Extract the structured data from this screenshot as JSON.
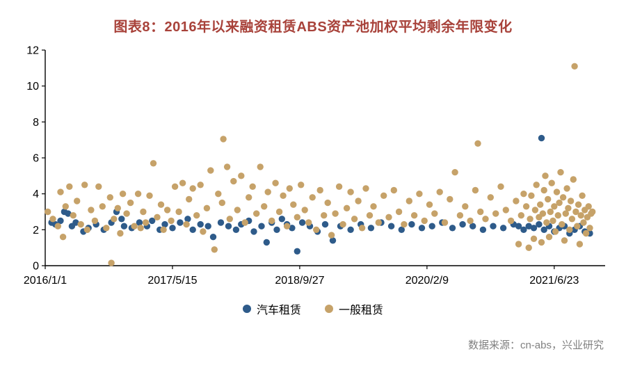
{
  "title": "图表8：2016年以来融资租赁ABS资产池加权平均剩余年限变化",
  "source": "数据来源：cn-abs，兴业研究",
  "colors": {
    "title": "#A8423A",
    "axis": "#000000",
    "tick_label": "#000000",
    "source_text": "#808080",
    "auto_lease": "#2E5B8A",
    "general_lease": "#C6A269"
  },
  "chart_data": {
    "type": "scatter",
    "title": "图表8：2016年以来融资租赁ABS资产池加权平均剩余年限变化",
    "xlabel": "",
    "ylabel": "",
    "grid": false,
    "legend_position": "bottom",
    "ylim": [
      0,
      12
    ],
    "ytick_step": 2,
    "xlim": [
      0,
      2200
    ],
    "x_unit": "days_since_2016-01-01",
    "xticks": [
      {
        "t": 0,
        "label": "2016/1/1"
      },
      {
        "t": 500,
        "label": "2017/5/15"
      },
      {
        "t": 1000,
        "label": "2018/9/27"
      },
      {
        "t": 1500,
        "label": "2020/2/9"
      },
      {
        "t": 2000,
        "label": "2021/6/23"
      }
    ],
    "series": [
      {
        "name": "汽车租赁",
        "color": "#2E5B8A",
        "points": [
          [
            25,
            2.4
          ],
          [
            40,
            2.3
          ],
          [
            60,
            2.5
          ],
          [
            75,
            3.0
          ],
          [
            90,
            2.9
          ],
          [
            105,
            2.2
          ],
          [
            120,
            2.4
          ],
          [
            150,
            1.9
          ],
          [
            170,
            2.1
          ],
          [
            200,
            2.3
          ],
          [
            230,
            2.0
          ],
          [
            260,
            2.4
          ],
          [
            280,
            3.0
          ],
          [
            300,
            2.6
          ],
          [
            310,
            2.2
          ],
          [
            340,
            2.1
          ],
          [
            370,
            2.4
          ],
          [
            400,
            2.2
          ],
          [
            420,
            2.5
          ],
          [
            450,
            2.0
          ],
          [
            470,
            2.3
          ],
          [
            500,
            2.1
          ],
          [
            530,
            2.4
          ],
          [
            560,
            2.6
          ],
          [
            580,
            2.0
          ],
          [
            610,
            2.3
          ],
          [
            640,
            2.2
          ],
          [
            660,
            1.6
          ],
          [
            690,
            2.4
          ],
          [
            720,
            2.2
          ],
          [
            750,
            2.0
          ],
          [
            770,
            2.3
          ],
          [
            800,
            2.5
          ],
          [
            820,
            1.9
          ],
          [
            850,
            2.2
          ],
          [
            870,
            1.3
          ],
          [
            890,
            2.4
          ],
          [
            910,
            2.0
          ],
          [
            930,
            2.6
          ],
          [
            950,
            2.3
          ],
          [
            970,
            2.1
          ],
          [
            990,
            0.8
          ],
          [
            1010,
            2.4
          ],
          [
            1040,
            2.2
          ],
          [
            1070,
            1.9
          ],
          [
            1100,
            2.3
          ],
          [
            1130,
            1.4
          ],
          [
            1160,
            2.2
          ],
          [
            1200,
            2.0
          ],
          [
            1240,
            2.3
          ],
          [
            1280,
            2.1
          ],
          [
            1320,
            2.4
          ],
          [
            1360,
            2.2
          ],
          [
            1400,
            2.0
          ],
          [
            1440,
            2.3
          ],
          [
            1480,
            2.1
          ],
          [
            1520,
            2.2
          ],
          [
            1560,
            2.4
          ],
          [
            1600,
            2.1
          ],
          [
            1640,
            2.3
          ],
          [
            1680,
            2.2
          ],
          [
            1720,
            2.0
          ],
          [
            1760,
            2.2
          ],
          [
            1800,
            2.1
          ],
          [
            1840,
            2.3
          ],
          [
            1860,
            2.2
          ],
          [
            1880,
            2.0
          ],
          [
            1900,
            2.2
          ],
          [
            1920,
            2.1
          ],
          [
            1940,
            2.3
          ],
          [
            1950,
            7.1
          ],
          [
            1960,
            2.0
          ],
          [
            1980,
            2.2
          ],
          [
            2000,
            1.9
          ],
          [
            2020,
            2.1
          ],
          [
            2040,
            2.2
          ],
          [
            2060,
            1.8
          ],
          [
            2080,
            2.0
          ],
          [
            2100,
            2.2
          ],
          [
            2120,
            1.9
          ],
          [
            2140,
            1.8
          ]
        ]
      },
      {
        "name": "一般租赁",
        "color": "#C6A269",
        "points": [
          [
            10,
            3.0
          ],
          [
            30,
            2.6
          ],
          [
            50,
            2.2
          ],
          [
            60,
            4.1
          ],
          [
            70,
            1.6
          ],
          [
            80,
            3.3
          ],
          [
            95,
            4.4
          ],
          [
            110,
            2.8
          ],
          [
            125,
            3.6
          ],
          [
            140,
            2.3
          ],
          [
            155,
            4.5
          ],
          [
            165,
            2.0
          ],
          [
            180,
            3.1
          ],
          [
            195,
            2.5
          ],
          [
            210,
            4.4
          ],
          [
            225,
            3.3
          ],
          [
            240,
            2.1
          ],
          [
            255,
            3.8
          ],
          [
            260,
            0.15
          ],
          [
            270,
            2.6
          ],
          [
            285,
            3.2
          ],
          [
            295,
            1.8
          ],
          [
            305,
            4.0
          ],
          [
            320,
            2.9
          ],
          [
            335,
            3.5
          ],
          [
            350,
            2.2
          ],
          [
            365,
            4.0
          ],
          [
            375,
            2.1
          ],
          [
            385,
            3.0
          ],
          [
            395,
            2.4
          ],
          [
            410,
            3.9
          ],
          [
            425,
            5.7
          ],
          [
            440,
            2.7
          ],
          [
            455,
            3.4
          ],
          [
            465,
            2.0
          ],
          [
            480,
            3.1
          ],
          [
            495,
            2.5
          ],
          [
            510,
            4.4
          ],
          [
            525,
            3.0
          ],
          [
            540,
            4.6
          ],
          [
            555,
            2.3
          ],
          [
            565,
            3.7
          ],
          [
            580,
            4.3
          ],
          [
            595,
            2.8
          ],
          [
            610,
            4.5
          ],
          [
            620,
            1.9
          ],
          [
            635,
            3.2
          ],
          [
            650,
            5.3
          ],
          [
            665,
            0.9
          ],
          [
            680,
            4.0
          ],
          [
            695,
            3.5
          ],
          [
            700,
            7.05
          ],
          [
            715,
            5.5
          ],
          [
            725,
            2.6
          ],
          [
            740,
            4.7
          ],
          [
            755,
            3.1
          ],
          [
            770,
            5.0
          ],
          [
            785,
            2.4
          ],
          [
            800,
            3.8
          ],
          [
            815,
            4.4
          ],
          [
            830,
            2.9
          ],
          [
            845,
            5.5
          ],
          [
            860,
            3.3
          ],
          [
            875,
            4.1
          ],
          [
            890,
            2.5
          ],
          [
            905,
            4.6
          ],
          [
            920,
            3.0
          ],
          [
            935,
            3.9
          ],
          [
            950,
            2.2
          ],
          [
            960,
            4.3
          ],
          [
            975,
            3.4
          ],
          [
            990,
            2.7
          ],
          [
            1005,
            4.5
          ],
          [
            1020,
            3.1
          ],
          [
            1035,
            2.4
          ],
          [
            1050,
            3.8
          ],
          [
            1065,
            2.0
          ],
          [
            1080,
            4.2
          ],
          [
            1095,
            2.8
          ],
          [
            1110,
            3.5
          ],
          [
            1125,
            1.7
          ],
          [
            1140,
            2.9
          ],
          [
            1155,
            4.4
          ],
          [
            1170,
            2.3
          ],
          [
            1185,
            3.2
          ],
          [
            1200,
            4.1
          ],
          [
            1215,
            2.6
          ],
          [
            1230,
            3.6
          ],
          [
            1245,
            2.1
          ],
          [
            1260,
            4.3
          ],
          [
            1275,
            2.8
          ],
          [
            1290,
            3.3
          ],
          [
            1310,
            2.4
          ],
          [
            1330,
            3.9
          ],
          [
            1350,
            2.7
          ],
          [
            1370,
            4.2
          ],
          [
            1390,
            3.0
          ],
          [
            1410,
            2.3
          ],
          [
            1430,
            3.6
          ],
          [
            1450,
            2.8
          ],
          [
            1470,
            4.0
          ],
          [
            1490,
            2.5
          ],
          [
            1510,
            3.4
          ],
          [
            1530,
            2.9
          ],
          [
            1550,
            4.1
          ],
          [
            1570,
            2.4
          ],
          [
            1590,
            3.7
          ],
          [
            1610,
            5.2
          ],
          [
            1630,
            2.8
          ],
          [
            1650,
            3.3
          ],
          [
            1670,
            2.5
          ],
          [
            1690,
            4.2
          ],
          [
            1700,
            6.8
          ],
          [
            1710,
            3.0
          ],
          [
            1730,
            2.6
          ],
          [
            1750,
            3.8
          ],
          [
            1770,
            2.9
          ],
          [
            1790,
            4.4
          ],
          [
            1810,
            3.1
          ],
          [
            1830,
            2.5
          ],
          [
            1850,
            3.6
          ],
          [
            1860,
            1.2
          ],
          [
            1870,
            2.8
          ],
          [
            1880,
            4.0
          ],
          [
            1890,
            3.3
          ],
          [
            1900,
            1.0
          ],
          [
            1905,
            2.6
          ],
          [
            1910,
            3.9
          ],
          [
            1920,
            1.5
          ],
          [
            1925,
            3.1
          ],
          [
            1930,
            4.5
          ],
          [
            1940,
            2.7
          ],
          [
            1945,
            3.4
          ],
          [
            1950,
            1.3
          ],
          [
            1955,
            2.9
          ],
          [
            1960,
            4.2
          ],
          [
            1965,
            5.0
          ],
          [
            1970,
            2.4
          ],
          [
            1975,
            3.7
          ],
          [
            1980,
            1.6
          ],
          [
            1985,
            3.0
          ],
          [
            1990,
            4.6
          ],
          [
            1995,
            2.5
          ],
          [
            2000,
            3.3
          ],
          [
            2005,
            1.9
          ],
          [
            2010,
            4.1
          ],
          [
            2015,
            2.8
          ],
          [
            2020,
            3.5
          ],
          [
            2025,
            5.2
          ],
          [
            2030,
            2.3
          ],
          [
            2035,
            3.8
          ],
          [
            2040,
            1.4
          ],
          [
            2045,
            2.9
          ],
          [
            2050,
            4.3
          ],
          [
            2055,
            3.2
          ],
          [
            2060,
            2.0
          ],
          [
            2065,
            3.6
          ],
          [
            2070,
            2.6
          ],
          [
            2075,
            4.8
          ],
          [
            2080,
            11.1
          ],
          [
            2085,
            3.0
          ],
          [
            2090,
            2.2
          ],
          [
            2095,
            3.4
          ],
          [
            2100,
            1.2
          ],
          [
            2105,
            2.8
          ],
          [
            2110,
            3.9
          ],
          [
            2115,
            2.4
          ],
          [
            2120,
            3.1
          ],
          [
            2125,
            1.8
          ],
          [
            2130,
            2.7
          ],
          [
            2135,
            3.3
          ],
          [
            2140,
            2.1
          ],
          [
            2145,
            2.9
          ],
          [
            2150,
            3.0
          ]
        ]
      }
    ]
  }
}
